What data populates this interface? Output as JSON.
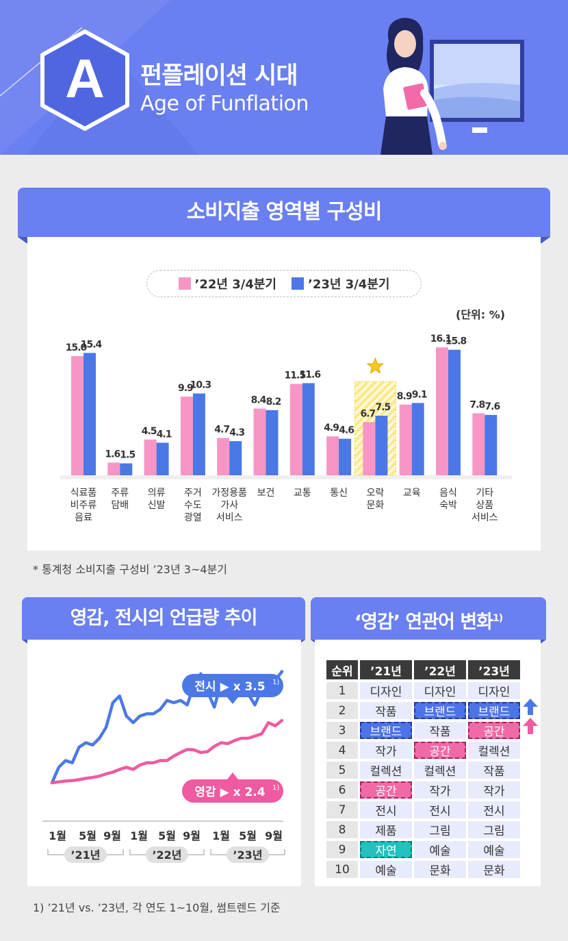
{
  "header": {
    "title_ko": "펀플레이션 시대",
    "title_en": "Age of Funflation",
    "badge_letter": "A"
  },
  "colors": {
    "pink": "#f796c4",
    "blue": "#4b78e6",
    "accent": "#6a7ff0",
    "line_blue": "#4b78e6",
    "line_pink": "#f05aa0"
  },
  "section1": {
    "title": "소비지출 영역별 구성비",
    "unit": "(단위: %)",
    "note": "*  통계청 소비지출 구성비 ’23년 3~4분기"
  },
  "section2": {
    "title": "영감, 전시의 언급량 추이",
    "callout_exhibit": "전시 ▶ x 3.5",
    "callout_inspire": "영감 ▶ x 2.4",
    "callout_sup": "1)"
  },
  "section3": {
    "title": "‘영감’ 연관어 변화",
    "title_sup": "1)"
  },
  "footnote": "1) ’21년 vs. ’23년, 각 연도 1~10월, 썸트렌드 기준",
  "chart_data": [
    {
      "type": "bar",
      "title": "소비지출 영역별 구성비",
      "unit": "%",
      "categories": [
        "식료품\n비주류\n음료",
        "주류\n담배",
        "의류\n신발",
        "주거\n수도\n광열",
        "가정용품\n가사\n서비스",
        "보건",
        "교통",
        "통신",
        "오락\n문화",
        "교육",
        "음식\n숙박",
        "기타\n상품\n서비스"
      ],
      "series": [
        {
          "name": "’22년 3/4분기",
          "values": [
            15.0,
            1.6,
            4.5,
            9.9,
            4.7,
            8.4,
            11.5,
            4.9,
            6.7,
            8.9,
            16.1,
            7.8
          ],
          "labels": [
            "15.0",
            "1.6",
            "4.5",
            "9.9",
            "4.7",
            "8.4",
            "11.5",
            "4.9",
            "6.7",
            "8.9",
            "16.1",
            "7.8"
          ]
        },
        {
          "name": "’23년 3/4분기",
          "values": [
            15.4,
            1.5,
            4.1,
            10.3,
            4.3,
            8.2,
            11.6,
            4.6,
            7.5,
            9.1,
            15.8,
            7.6
          ],
          "labels": [
            "15.4",
            "1.5",
            "4.1",
            "10.3",
            "4.3",
            "8.2",
            "11.6",
            "4.6",
            "7.5",
            "9.1",
            "15.8",
            "7.6"
          ]
        }
      ],
      "highlight_category": "오락\n문화",
      "legend": "top-center",
      "grid": false
    },
    {
      "type": "line",
      "title": "영감, 전시의 언급량 추이",
      "x_ticks": [
        "1월",
        "5월",
        "9월",
        "1월",
        "5월",
        "9월",
        "1월",
        "5월",
        "9월"
      ],
      "year_groups": [
        "’21년",
        "’22년",
        "’23년"
      ],
      "series": [
        {
          "name": "전시",
          "values": [
            1.0,
            1.35,
            1.5,
            1.45,
            1.8,
            1.9,
            1.85,
            2.0,
            2.25,
            2.8,
            2.95,
            2.5,
            2.35,
            2.5,
            2.55,
            2.55,
            2.65,
            2.85,
            2.8,
            2.85,
            2.75,
            3.2,
            3.45,
            3.05,
            2.7,
            3.25,
            2.95,
            3.05,
            3.15,
            3.0,
            2.75,
            3.1,
            3.05,
            3.3,
            3.5
          ]
        },
        {
          "name": "영감",
          "values": [
            1.0,
            1.02,
            1.04,
            1.05,
            1.07,
            1.1,
            1.12,
            1.15,
            1.2,
            1.24,
            1.3,
            1.35,
            1.3,
            1.4,
            1.45,
            1.45,
            1.5,
            1.5,
            1.6,
            1.68,
            1.75,
            1.74,
            1.68,
            1.7,
            1.82,
            1.9,
            1.88,
            1.95,
            2.0,
            2.0,
            2.05,
            2.1,
            2.35,
            2.28,
            2.4
          ]
        }
      ],
      "grid": false
    }
  ],
  "rank_table": {
    "headers": [
      "순위",
      "’21년",
      "’22년",
      "’23년"
    ],
    "rows": [
      [
        "1",
        "디자인",
        "디자인",
        "디자인"
      ],
      [
        "2",
        "작품",
        "브랜드",
        "브랜드"
      ],
      [
        "3",
        "브랜드",
        "작품",
        "공간"
      ],
      [
        "4",
        "작가",
        "공간",
        "컬렉션"
      ],
      [
        "5",
        "컬렉션",
        "컬렉션",
        "작품"
      ],
      [
        "6",
        "공간",
        "작가",
        "작가"
      ],
      [
        "7",
        "전시",
        "전시",
        "전시"
      ],
      [
        "8",
        "제품",
        "그림",
        "그림"
      ],
      [
        "9",
        "자연",
        "예술",
        "예술"
      ],
      [
        "10",
        "예술",
        "문화",
        "문화"
      ]
    ],
    "highlights": {
      "blue": [
        [
          1,
          2
        ],
        [
          1,
          3
        ],
        [
          2,
          1
        ]
      ],
      "pink": [
        [
          2,
          3
        ],
        [
          3,
          2
        ],
        [
          5,
          1
        ]
      ],
      "teal": [
        [
          8,
          1
        ]
      ]
    }
  }
}
